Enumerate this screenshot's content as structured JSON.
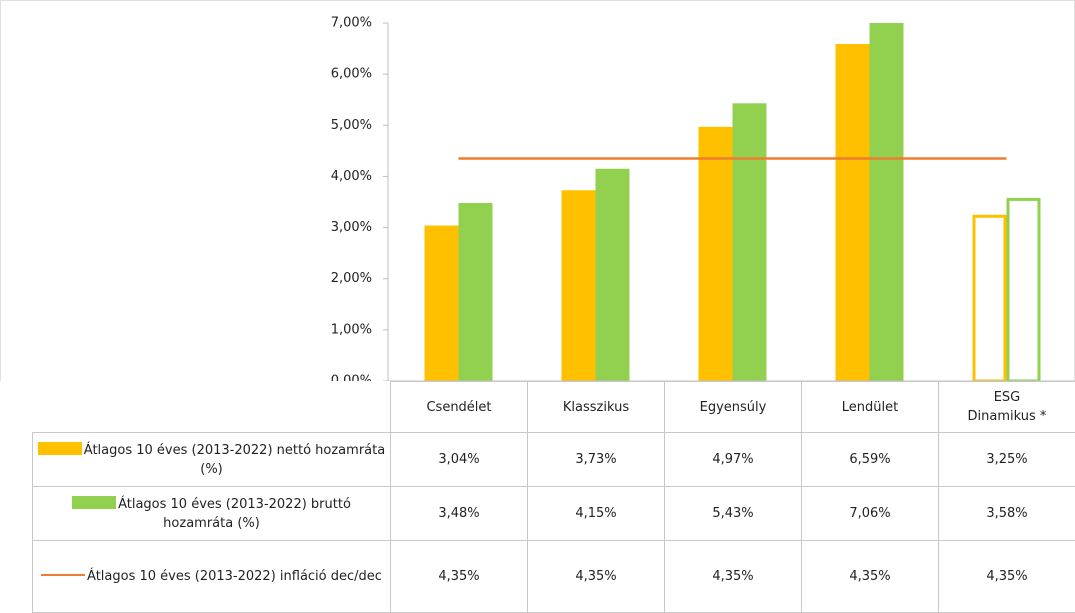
{
  "chart_data": {
    "type": "bar",
    "categories": [
      "Csendélet",
      "Klasszikus",
      "Egyensúly",
      "Lendület",
      "ESG Dinamikus *"
    ],
    "hollow": [
      false,
      false,
      false,
      false,
      true
    ],
    "series": [
      {
        "name": "Átlagos 10 éves (2013-2022) nettó hozamráta (%)",
        "type": "bar",
        "color": "#FFC000",
        "values": [
          3.04,
          3.73,
          4.97,
          6.59,
          3.25
        ],
        "value_labels": [
          "3,04%",
          "3,73%",
          "4,97%",
          "6,59%",
          "3,25%"
        ]
      },
      {
        "name": "Átlagos 10 éves (2013-2022) bruttó hozamráta (%)",
        "type": "bar",
        "color": "#92D050",
        "values": [
          3.48,
          4.15,
          5.43,
          7.06,
          3.58
        ],
        "value_labels": [
          "3,48%",
          "4,15%",
          "5,43%",
          "7,06%",
          "3,58%"
        ]
      },
      {
        "name": "Átlagos 10 éves (2013-2022) infláció dec/dec",
        "type": "line",
        "color": "#ED7D31",
        "values": [
          4.35,
          4.35,
          4.35,
          4.35,
          4.35
        ],
        "value_labels": [
          "4,35%",
          "4,35%",
          "4,35%",
          "4,35%",
          "4,35%"
        ]
      }
    ],
    "ylim": [
      0,
      7
    ],
    "yticks": [
      {
        "value": 0,
        "label": "0,00%"
      },
      {
        "value": 1,
        "label": "1,00%"
      },
      {
        "value": 2,
        "label": "2,00%"
      },
      {
        "value": 3,
        "label": "3,00%"
      },
      {
        "value": 4,
        "label": "4,00%"
      },
      {
        "value": 5,
        "label": "5,00%"
      },
      {
        "value": 6,
        "label": "6,00%"
      },
      {
        "value": 7,
        "label": "7,00%"
      }
    ]
  }
}
